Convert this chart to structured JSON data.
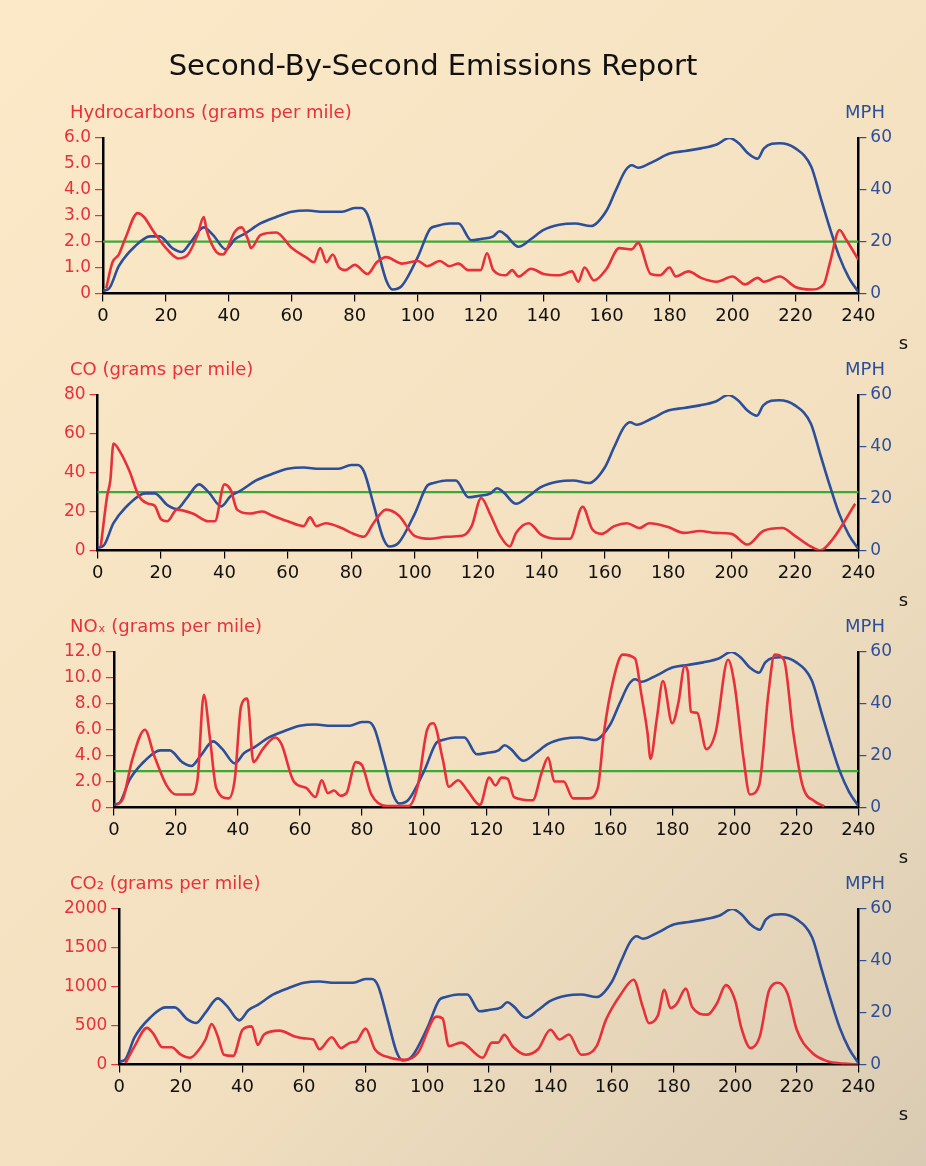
{
  "chart_data": [
    {
      "type": "line",
      "title": "Second-By-Second Emissions Report",
      "ylabel": "Hydrocarbons (grams per mile)",
      "y2label": "MPH",
      "xlabel": "s",
      "xlim": [
        0,
        240
      ],
      "xticks": [
        0,
        20,
        40,
        60,
        80,
        100,
        120,
        140,
        160,
        180,
        200,
        220,
        240
      ],
      "ylim": [
        0,
        6
      ],
      "yticks": [
        0,
        {
          "value": 1,
          "label": "1.0"
        },
        {
          "value": 2,
          "label": "2.0"
        },
        {
          "value": 3,
          "label": "3.0"
        },
        {
          "value": 4,
          "label": "4.0"
        },
        {
          "value": 5,
          "label": "5.0"
        },
        {
          "value": 6,
          "label": "6.0"
        }
      ],
      "y2lim": [
        0,
        60
      ],
      "y2ticks": [
        0,
        20,
        40,
        60
      ],
      "ref_lines": [
        {
          "axis": "y",
          "value": 2,
          "color": "#3aaa35"
        }
      ],
      "series": [
        {
          "color": "#e8303a",
          "x": [
            1,
            3,
            5,
            7,
            11,
            13,
            16,
            20,
            24,
            27,
            30,
            32,
            33,
            36,
            38,
            42,
            44,
            46,
            47,
            50,
            55,
            60,
            65,
            67,
            69,
            71,
            73,
            75,
            77,
            80,
            84,
            87,
            90,
            95,
            100,
            103,
            107,
            110,
            113,
            116,
            120,
            122,
            124,
            128,
            130,
            132,
            136,
            140,
            145,
            149,
            151,
            153,
            156,
            160,
            164,
            168,
            170,
            174,
            177,
            180,
            182,
            186,
            190,
            195,
            200,
            204,
            208,
            210,
            215,
            220,
            225,
            229,
            231,
            234,
            236,
            240
          ],
          "values": [
            0.2,
            1.2,
            1.5,
            2.1,
            3.1,
            2.95,
            2.4,
            1.75,
            1.35,
            1.5,
            2.25,
            2.95,
            2.4,
            1.6,
            1.5,
            2.4,
            2.55,
            2.1,
            1.75,
            2.25,
            2.35,
            1.75,
            1.35,
            1.2,
            1.75,
            1.2,
            1.5,
            1.0,
            0.9,
            1.1,
            0.75,
            1.2,
            1.4,
            1.15,
            1.25,
            1.05,
            1.25,
            1.05,
            1.15,
            0.9,
            0.9,
            1.55,
            0.9,
            0.7,
            0.9,
            0.65,
            0.95,
            0.75,
            0.7,
            0.85,
            0.45,
            1.0,
            0.5,
            0.95,
            1.75,
            1.7,
            1.95,
            0.75,
            0.7,
            1.0,
            0.65,
            0.85,
            0.6,
            0.45,
            0.65,
            0.35,
            0.6,
            0.45,
            0.65,
            0.25,
            0.15,
            0.35,
            1.2,
            2.45,
            2.1,
            1.3
          ]
        },
        {
          "color": "#2b4f9a",
          "axis": "y2",
          "x": [
            0,
            2,
            5,
            10,
            15,
            18,
            22,
            25,
            28,
            32,
            35,
            39,
            42,
            45,
            50,
            55,
            60,
            65,
            70,
            76,
            80,
            82,
            84,
            87,
            90,
            92,
            95,
            100,
            104,
            106,
            110,
            113,
            117,
            120,
            124,
            126,
            128,
            132,
            136,
            140,
            145,
            150,
            155,
            160,
            163,
            166,
            168,
            170,
            175,
            180,
            185,
            190,
            195,
            199,
            202,
            205,
            208,
            210,
            215,
            220,
            225,
            228,
            231,
            234,
            237,
            240
          ],
          "values": [
            1,
            2,
            10.5,
            18,
            22,
            22,
            17.5,
            16,
            20,
            25.5,
            22.5,
            17,
            21,
            23,
            27,
            29.5,
            31.5,
            32,
            31.5,
            31.5,
            33,
            33,
            30.5,
            18,
            5,
            1.5,
            3,
            14,
            25,
            26,
            27,
            27,
            20.5,
            21,
            22,
            24,
            22.5,
            18,
            21,
            24.5,
            26.5,
            27,
            26,
            32,
            40,
            47.5,
            49.5,
            48.5,
            51,
            54,
            55,
            56,
            57.5,
            60,
            58,
            54,
            52,
            56,
            58,
            56,
            49,
            37,
            25,
            14,
            6,
            0.5
          ]
        }
      ]
    },
    {
      "type": "line",
      "ylabel": "CO (grams per mile)",
      "y2label": "MPH",
      "xlabel": "s",
      "xlim": [
        0,
        240
      ],
      "xticks": [
        0,
        20,
        40,
        60,
        80,
        100,
        120,
        140,
        160,
        180,
        200,
        220,
        240
      ],
      "ylim": [
        0,
        80
      ],
      "yticks": [
        0,
        20,
        40,
        60,
        80
      ],
      "y2lim": [
        0,
        60
      ],
      "y2ticks": [
        0,
        20,
        40,
        60
      ],
      "ref_lines": [
        {
          "axis": "y",
          "value": 30,
          "color": "#3aaa35"
        }
      ],
      "series": [
        {
          "color": "#e8303a",
          "x": [
            1,
            3,
            4,
            5,
            7,
            10,
            13,
            16,
            18,
            20,
            22,
            25,
            30,
            35,
            37,
            40,
            42,
            44,
            48,
            52,
            55,
            60,
            65,
            67,
            69,
            72,
            77,
            80,
            84,
            87,
            91,
            95,
            100,
            105,
            110,
            115,
            118,
            121,
            124,
            127,
            130,
            132,
            136,
            140,
            145,
            149,
            153,
            156,
            159,
            163,
            167,
            171,
            174,
            180,
            185,
            190,
            195,
            200,
            205,
            210,
            216,
            220,
            225,
            228,
            232,
            239
          ],
          "values": [
            2,
            28,
            36,
            55,
            51,
            41,
            28,
            24,
            23,
            16,
            15,
            21,
            19,
            15,
            15,
            34,
            31,
            21,
            19,
            20,
            18,
            15,
            12.5,
            17,
            12.5,
            14,
            11.5,
            9,
            7,
            14,
            21,
            18,
            7.5,
            6,
            7,
            7.5,
            12.5,
            27,
            18,
            7.5,
            2,
            9,
            14,
            8,
            6,
            6,
            22.5,
            11,
            8.5,
            12.5,
            14,
            11.5,
            14,
            12,
            9,
            10,
            9,
            8.5,
            3,
            10,
            11.5,
            7.5,
            2,
            0,
            6,
            24
          ]
        },
        {
          "color": "#2b4f9a",
          "axis": "y2",
          "x": [
            0,
            2,
            5,
            10,
            15,
            18,
            22,
            25,
            28,
            32,
            35,
            39,
            42,
            45,
            50,
            55,
            60,
            65,
            70,
            76,
            80,
            82,
            84,
            87,
            90,
            92,
            95,
            100,
            104,
            106,
            110,
            113,
            117,
            120,
            124,
            126,
            128,
            132,
            136,
            140,
            145,
            150,
            155,
            160,
            163,
            166,
            168,
            170,
            175,
            180,
            185,
            190,
            195,
            199,
            202,
            205,
            208,
            210,
            215,
            220,
            225,
            228,
            231,
            234,
            237,
            240
          ],
          "values": [
            1,
            2,
            10.5,
            18,
            22,
            22,
            17.5,
            16,
            20,
            25.5,
            22.5,
            17,
            21,
            23,
            27,
            29.5,
            31.5,
            32,
            31.5,
            31.5,
            33,
            33,
            30.5,
            18,
            5,
            1.5,
            3,
            14,
            25,
            26,
            27,
            27,
            20.5,
            21,
            22,
            24,
            22.5,
            18,
            21,
            24.5,
            26.5,
            27,
            26,
            32,
            40,
            47.5,
            49.5,
            48.5,
            51,
            54,
            55,
            56,
            57.5,
            60,
            58,
            54,
            52,
            56,
            58,
            56,
            49,
            37,
            25,
            14,
            6,
            0.5
          ]
        }
      ]
    },
    {
      "type": "line",
      "ylabel": "NOₓ (grams per mile)",
      "y2label": "MPH",
      "xlabel": "s",
      "xlim": [
        0,
        240
      ],
      "xticks": [
        0,
        20,
        40,
        60,
        80,
        100,
        120,
        140,
        160,
        180,
        200,
        220,
        240
      ],
      "ylim": [
        0,
        12
      ],
      "yticks": [
        0,
        {
          "value": 2,
          "label": "2.0"
        },
        {
          "value": 4,
          "label": "4.0"
        },
        {
          "value": 6,
          "label": "6.0"
        },
        {
          "value": 8,
          "label": "8.0"
        },
        {
          "value": 10,
          "label": "10.0"
        },
        {
          "value": 12,
          "label": "12.0"
        }
      ],
      "y2lim": [
        0,
        60
      ],
      "y2ticks": [
        0,
        20,
        40,
        60
      ],
      "ref_lines": [
        {
          "axis": "y",
          "value": 2.8,
          "color": "#3aaa35"
        }
      ],
      "series": [
        {
          "color": "#e8303a",
          "x": [
            1,
            3,
            6,
            10,
            13,
            17,
            20,
            25,
            27,
            29,
            31,
            33,
            37,
            39,
            41,
            43,
            45,
            48,
            52,
            54,
            58,
            62,
            65,
            67,
            69,
            71,
            73,
            75,
            78,
            80,
            83,
            88,
            95,
            98,
            101,
            103,
            106,
            108,
            111,
            114,
            118,
            121,
            123,
            125,
            127,
            129,
            135,
            138,
            140,
            142,
            145,
            148,
            153,
            156,
            158,
            161,
            164,
            168,
            170,
            172,
            173,
            175,
            177,
            180,
            182,
            184,
            185,
            186,
            188,
            191,
            194,
            198,
            200,
            203,
            205,
            208,
            211,
            213,
            216,
            219,
            222,
            226,
            229
          ],
          "values": [
            0.2,
            0.7,
            3.75,
            6.0,
            4.0,
            1.7,
            1.0,
            1.0,
            2.2,
            8.7,
            5.3,
            1.5,
            0.7,
            2.2,
            7.8,
            8.4,
            3.5,
            4.5,
            5.4,
            4.9,
            2.0,
            1.5,
            0.8,
            2.1,
            1.1,
            1.3,
            0.9,
            1.1,
            3.5,
            3.25,
            1.0,
            0.1,
            0.1,
            1.7,
            6.0,
            6.5,
            3.75,
            1.6,
            2.1,
            1.3,
            0.2,
            2.3,
            1.7,
            2.3,
            2.2,
            0.8,
            0.55,
            2.75,
            3.85,
            2.0,
            2.0,
            0.7,
            0.7,
            1.5,
            5.8,
            9.85,
            11.8,
            11.5,
            8.8,
            5.8,
            3.75,
            6.8,
            9.75,
            6.5,
            8.1,
            10.9,
            10.5,
            7.4,
            7.3,
            4.5,
            5.8,
            11.4,
            9.6,
            3.75,
            1.0,
            1.7,
            8.8,
            11.8,
            11.4,
            5.8,
            1.7,
            0.45,
            0.1
          ]
        },
        {
          "color": "#2b4f9a",
          "axis": "y2",
          "x": [
            0,
            2,
            5,
            10,
            15,
            18,
            22,
            25,
            28,
            32,
            35,
            39,
            42,
            45,
            50,
            55,
            60,
            65,
            70,
            76,
            80,
            82,
            84,
            87,
            90,
            92,
            95,
            100,
            104,
            106,
            110,
            113,
            117,
            120,
            124,
            126,
            128,
            132,
            136,
            140,
            145,
            150,
            155,
            160,
            163,
            166,
            168,
            170,
            175,
            180,
            185,
            190,
            195,
            199,
            202,
            205,
            208,
            210,
            215,
            220,
            225,
            228,
            231,
            234,
            237,
            240
          ],
          "values": [
            1,
            2,
            10.5,
            18,
            22,
            22,
            17.5,
            16,
            20,
            25.5,
            22.5,
            17,
            21,
            23,
            27,
            29.5,
            31.5,
            32,
            31.5,
            31.5,
            33,
            33,
            30.5,
            18,
            5,
            1.5,
            3,
            14,
            25,
            26,
            27,
            27,
            20.5,
            21,
            22,
            24,
            22.5,
            18,
            21,
            24.5,
            26.5,
            27,
            26,
            32,
            40,
            47.5,
            49.5,
            48.5,
            51,
            54,
            55,
            56,
            57.5,
            60,
            58,
            54,
            52,
            56,
            58,
            56,
            49,
            37,
            25,
            14,
            6,
            0.5
          ]
        }
      ]
    },
    {
      "type": "line",
      "ylabel": "CO₂ (grams per mile)",
      "y2label": "MPH",
      "xlabel": "s",
      "xlim": [
        0,
        240
      ],
      "xticks": [
        0,
        20,
        40,
        60,
        80,
        100,
        120,
        140,
        160,
        180,
        200,
        220,
        240
      ],
      "ylim": [
        0,
        2000
      ],
      "yticks": [
        0,
        500,
        1000,
        1500,
        2000
      ],
      "y2lim": [
        0,
        60
      ],
      "y2ticks": [
        0,
        20,
        40,
        60
      ],
      "series": [
        {
          "color": "#e8303a",
          "x": [
            2,
            5,
            9,
            11,
            14,
            17,
            20,
            23,
            26,
            28,
            30,
            32,
            34,
            37,
            40,
            43,
            45,
            47,
            52,
            57,
            60,
            63,
            65,
            69,
            72,
            75,
            77,
            80,
            83,
            88,
            93,
            97,
            103,
            105,
            107,
            111,
            118,
            121,
            123,
            125,
            128,
            132,
            136,
            140,
            143,
            146,
            150,
            155,
            158,
            163,
            167,
            170,
            172,
            175,
            177,
            179,
            181,
            184,
            186,
            191,
            194,
            197,
            200,
            202,
            205,
            208,
            211,
            214,
            217,
            220,
            225,
            230,
            235,
            240
          ],
          "values": [
            15,
            235,
            470,
            400,
            220,
            220,
            125,
            85,
            195,
            320,
            520,
            360,
            125,
            110,
            445,
            490,
            250,
            385,
            435,
            360,
            335,
            320,
            195,
            350,
            210,
            280,
            295,
            460,
            195,
            85,
            60,
            150,
            615,
            590,
            235,
            280,
            85,
            280,
            280,
            380,
            220,
            125,
            195,
            445,
            320,
            385,
            125,
            235,
            570,
            910,
            1090,
            740,
            530,
            640,
            960,
            725,
            780,
            975,
            740,
            640,
            780,
            1020,
            820,
            470,
            210,
            360,
            950,
            1050,
            910,
            445,
            150,
            40,
            10,
            0
          ]
        },
        {
          "color": "#2b4f9a",
          "axis": "y2",
          "x": [
            0,
            2,
            5,
            10,
            15,
            18,
            22,
            25,
            28,
            32,
            35,
            39,
            42,
            45,
            50,
            55,
            60,
            65,
            70,
            76,
            80,
            82,
            84,
            87,
            90,
            92,
            95,
            100,
            104,
            106,
            110,
            113,
            117,
            120,
            124,
            126,
            128,
            132,
            136,
            140,
            145,
            150,
            155,
            160,
            163,
            166,
            168,
            170,
            175,
            180,
            185,
            190,
            195,
            199,
            202,
            205,
            208,
            210,
            215,
            220,
            225,
            228,
            231,
            234,
            237,
            240
          ],
          "values": [
            1,
            2,
            10.5,
            18,
            22,
            22,
            17.5,
            16,
            20,
            25.5,
            22.5,
            17,
            21,
            23,
            27,
            29.5,
            31.5,
            32,
            31.5,
            31.5,
            33,
            33,
            30.5,
            18,
            5,
            1.5,
            3,
            14,
            25,
            26,
            27,
            27,
            20.5,
            21,
            22,
            24,
            22.5,
            18,
            21,
            24.5,
            26.5,
            27,
            26,
            32,
            40,
            47.5,
            49.5,
            48.5,
            51,
            54,
            55,
            56,
            57.5,
            60,
            58,
            54,
            52,
            56,
            58,
            56,
            49,
            37,
            25,
            14,
            6,
            0.5
          ]
        }
      ]
    }
  ]
}
